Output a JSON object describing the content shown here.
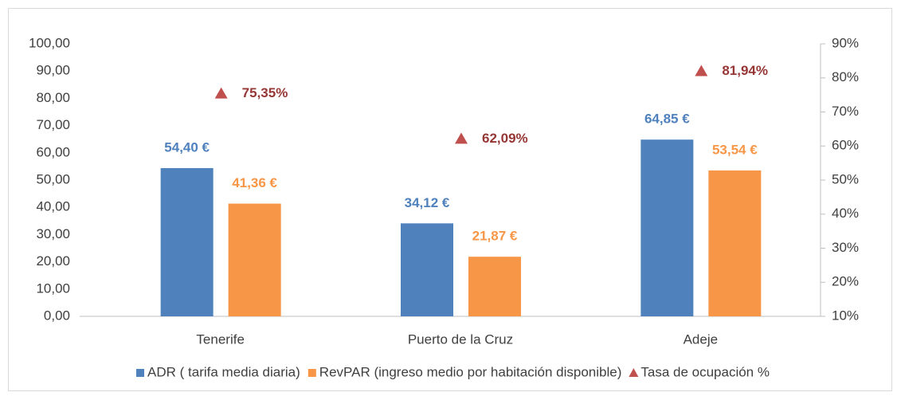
{
  "chart_data": {
    "type": "bar",
    "categories": [
      "Tenerife",
      "Puerto de la Cruz",
      "Adeje"
    ],
    "series": [
      {
        "name": "ADR ( tarifa media diaria)",
        "color": "#4f81bd",
        "values": [
          54.4,
          34.12,
          64.85
        ],
        "value_labels": [
          "54,40 €",
          "34,12 €",
          "64,85 €"
        ]
      },
      {
        "name": "RevPAR (ingreso medio por habitación disponible)",
        "color": "#f79646",
        "values": [
          41.36,
          21.87,
          53.54
        ],
        "value_labels": [
          "41,36 €",
          "21,87 €",
          "53,54 €"
        ]
      },
      {
        "name": "Tasa de ocupación %",
        "type": "scatter",
        "marker": "triangle",
        "axis": "y2",
        "color": "#c0504d",
        "label_color": "#953735",
        "values": [
          75.35,
          62.09,
          81.94
        ],
        "value_labels": [
          "75,35%",
          "62,09%",
          "81,94%"
        ]
      }
    ],
    "ylim": [
      0,
      100
    ],
    "yticks": [
      {
        "value": 0,
        "label": "0,00"
      },
      {
        "value": 10,
        "label": "10,00"
      },
      {
        "value": 20,
        "label": "20,00"
      },
      {
        "value": 30,
        "label": "30,00"
      },
      {
        "value": 40,
        "label": "40,00"
      },
      {
        "value": 50,
        "label": "50,00"
      },
      {
        "value": 60,
        "label": "60,00"
      },
      {
        "value": 70,
        "label": "70,00"
      },
      {
        "value": 80,
        "label": "80,00"
      },
      {
        "value": 90,
        "label": "90,00"
      },
      {
        "value": 100,
        "label": "100,00"
      }
    ],
    "y2lim": [
      10,
      90
    ],
    "y2ticks": [
      {
        "value": 10,
        "label": "10%"
      },
      {
        "value": 20,
        "label": "20%"
      },
      {
        "value": 30,
        "label": "30%"
      },
      {
        "value": 40,
        "label": "40%"
      },
      {
        "value": 50,
        "label": "50%"
      },
      {
        "value": 60,
        "label": "60%"
      },
      {
        "value": 70,
        "label": "70%"
      },
      {
        "value": 80,
        "label": "80%"
      },
      {
        "value": 90,
        "label": "90%"
      }
    ],
    "grid": false,
    "legend": "bottom"
  }
}
